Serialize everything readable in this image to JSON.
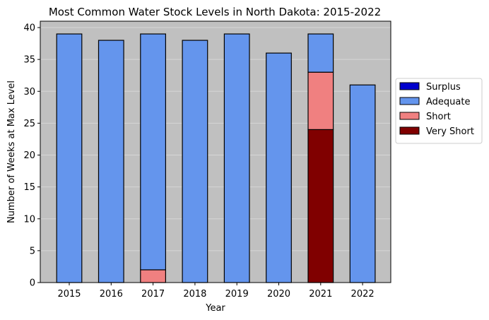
{
  "chart_data": {
    "type": "bar",
    "stacked": true,
    "title": "Most Common Water Stock Levels in North Dakota: 2015-2022",
    "xlabel": "Year",
    "ylabel": "Number of Weeks at Max Level",
    "categories": [
      "2015",
      "2016",
      "2017",
      "2018",
      "2019",
      "2020",
      "2021",
      "2022"
    ],
    "ylim": [
      0,
      41
    ],
    "yticks": [
      0,
      5,
      10,
      15,
      20,
      25,
      30,
      35,
      40
    ],
    "grid": true,
    "background_color": "#c0c0c0",
    "legend_position": "outside-right",
    "series": [
      {
        "name": "Very Short",
        "color": "#800000",
        "values": [
          0,
          0,
          0,
          0,
          0,
          0,
          24,
          0
        ]
      },
      {
        "name": "Short",
        "color": "#f08080",
        "values": [
          0,
          0,
          2,
          0,
          0,
          0,
          9,
          0
        ]
      },
      {
        "name": "Adequate",
        "color": "#6495ed",
        "values": [
          39,
          38,
          37,
          38,
          39,
          36,
          6,
          31
        ]
      },
      {
        "name": "Surplus",
        "color": "#0000cd",
        "values": [
          0,
          0,
          0,
          0,
          0,
          0,
          0,
          0
        ]
      }
    ],
    "legend_order": [
      "Surplus",
      "Adequate",
      "Short",
      "Very Short"
    ]
  }
}
